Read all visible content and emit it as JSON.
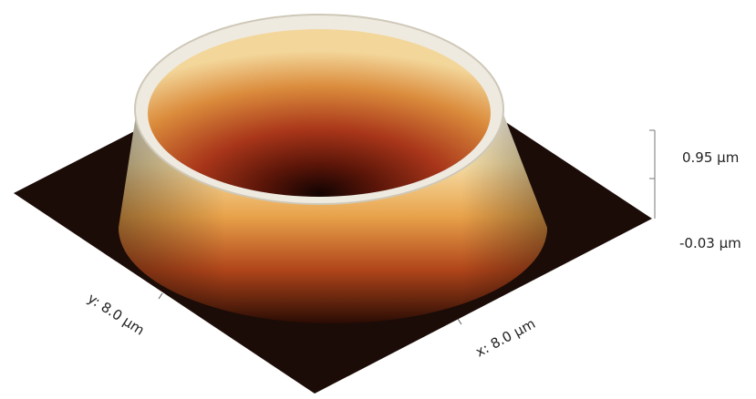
{
  "axes": {
    "y_label": "y: 8.0 µm",
    "x_label": "x: 8.0 µm",
    "z_max_label": "0.95 µm",
    "z_min_label": "-0.03 µm"
  }
}
